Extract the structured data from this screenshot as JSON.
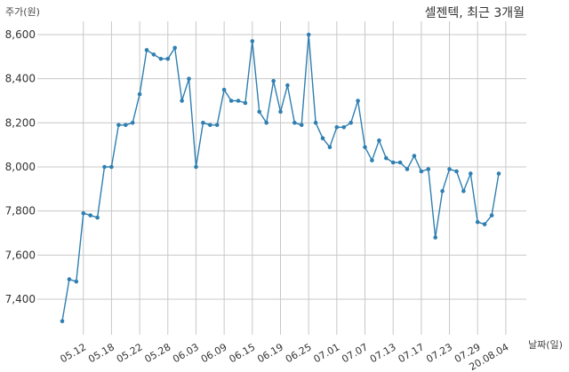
{
  "chart_data": {
    "type": "line",
    "title": "셀젠텍, 최근 3개월",
    "ylabel": "주가(원)",
    "xlabel": "날짜(일)",
    "ylim": [
      7200,
      8700
    ],
    "yticks": [
      7400,
      7600,
      7800,
      8000,
      8200,
      8400,
      8600
    ],
    "ytick_labels": [
      "7,400",
      "7,600",
      "7,800",
      "8,000",
      "8,200",
      "8,400",
      "8,600"
    ],
    "xtick_labels": [
      "05.12",
      "05.18",
      "05.22",
      "05.28",
      "06.03",
      "06.09",
      "06.15",
      "06.19",
      "06.25",
      "07.01",
      "07.07",
      "07.13",
      "07.17",
      "07.23",
      "07.29",
      "20.08.04"
    ],
    "xtick_index": [
      3,
      7,
      11,
      15,
      19,
      23,
      27,
      31,
      35,
      39,
      43,
      47,
      51,
      55,
      59,
      63
    ],
    "grid": true,
    "line_color": "#2f7fb1",
    "series": [
      {
        "values": [
          7300,
          7490,
          7480,
          7790,
          7780,
          7770,
          8000,
          8000,
          8190,
          8190,
          8200,
          8330,
          8530,
          8510,
          8490,
          8490,
          8540,
          8300,
          8400,
          8000,
          8200,
          8190,
          8190,
          8350,
          8300,
          8300,
          8290,
          8570,
          8250,
          8200,
          8390,
          8250,
          8370,
          8200,
          8190,
          8600,
          8200,
          8130,
          8090,
          8180,
          8180,
          8200,
          8300,
          8090,
          8030,
          8120,
          8040,
          8020,
          8020,
          7990,
          8050,
          7980,
          7990,
          7680,
          7890,
          7990,
          7980,
          7890,
          7970,
          7750,
          7740,
          7780,
          7970
        ]
      }
    ]
  }
}
